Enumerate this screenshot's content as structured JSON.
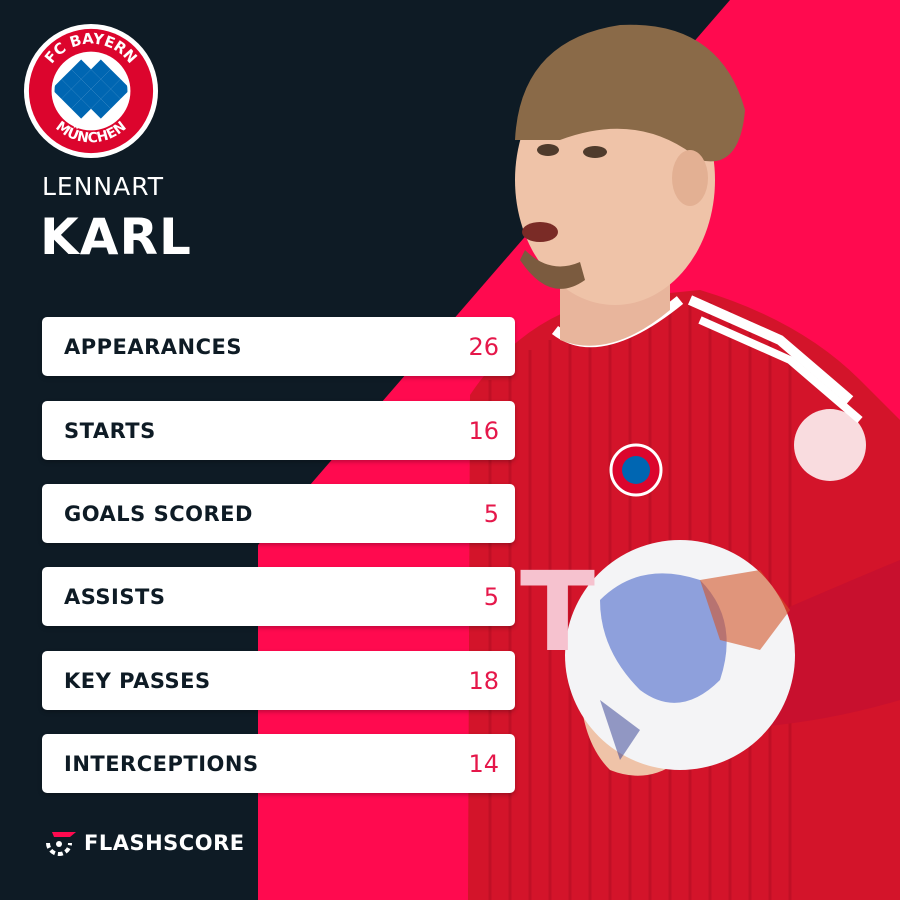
{
  "player": {
    "first_name": "LENNART",
    "last_name": "KARL",
    "club": "FC BAYERN MÜNCHEN"
  },
  "club_crest": {
    "icon": "fc-bayern-crest",
    "text_top": "FC BAYERN",
    "text_bottom": "MÜNCHEN"
  },
  "stats": [
    {
      "label": "APPEARANCES",
      "value": "26"
    },
    {
      "label": "STARTS",
      "value": "16"
    },
    {
      "label": "GOALS SCORED",
      "value": "5"
    },
    {
      "label": "ASSISTS",
      "value": "5"
    },
    {
      "label": "KEY PASSES",
      "value": "18"
    },
    {
      "label": "INTERCEPTIONS",
      "value": "14"
    }
  ],
  "brand": {
    "icon": "flashscore-logo",
    "name": "FLASHSCORE"
  },
  "colors": {
    "background": "#0e1b25",
    "accent": "#ff0a4f",
    "value_text": "#e5174a",
    "card": "#ffffff",
    "bayern_red": "#dc052d",
    "bayern_blue": "#0066b2"
  }
}
